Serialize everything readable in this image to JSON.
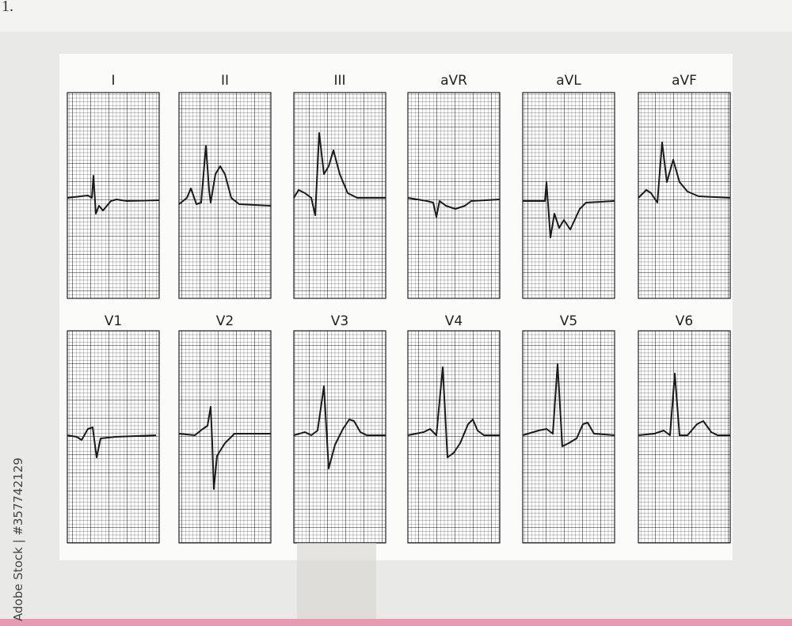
{
  "page_number": "1.",
  "leads": [
    {
      "label": "I"
    },
    {
      "label": "II"
    },
    {
      "label": "III"
    },
    {
      "label": "aVR"
    },
    {
      "label": "aVL"
    },
    {
      "label": "aVF"
    },
    {
      "label": "V1"
    },
    {
      "label": "V2"
    },
    {
      "label": "V3"
    },
    {
      "label": "V4"
    },
    {
      "label": "V5"
    },
    {
      "label": "V6"
    }
  ],
  "watermark": "Adobe Stock | #357742129"
}
